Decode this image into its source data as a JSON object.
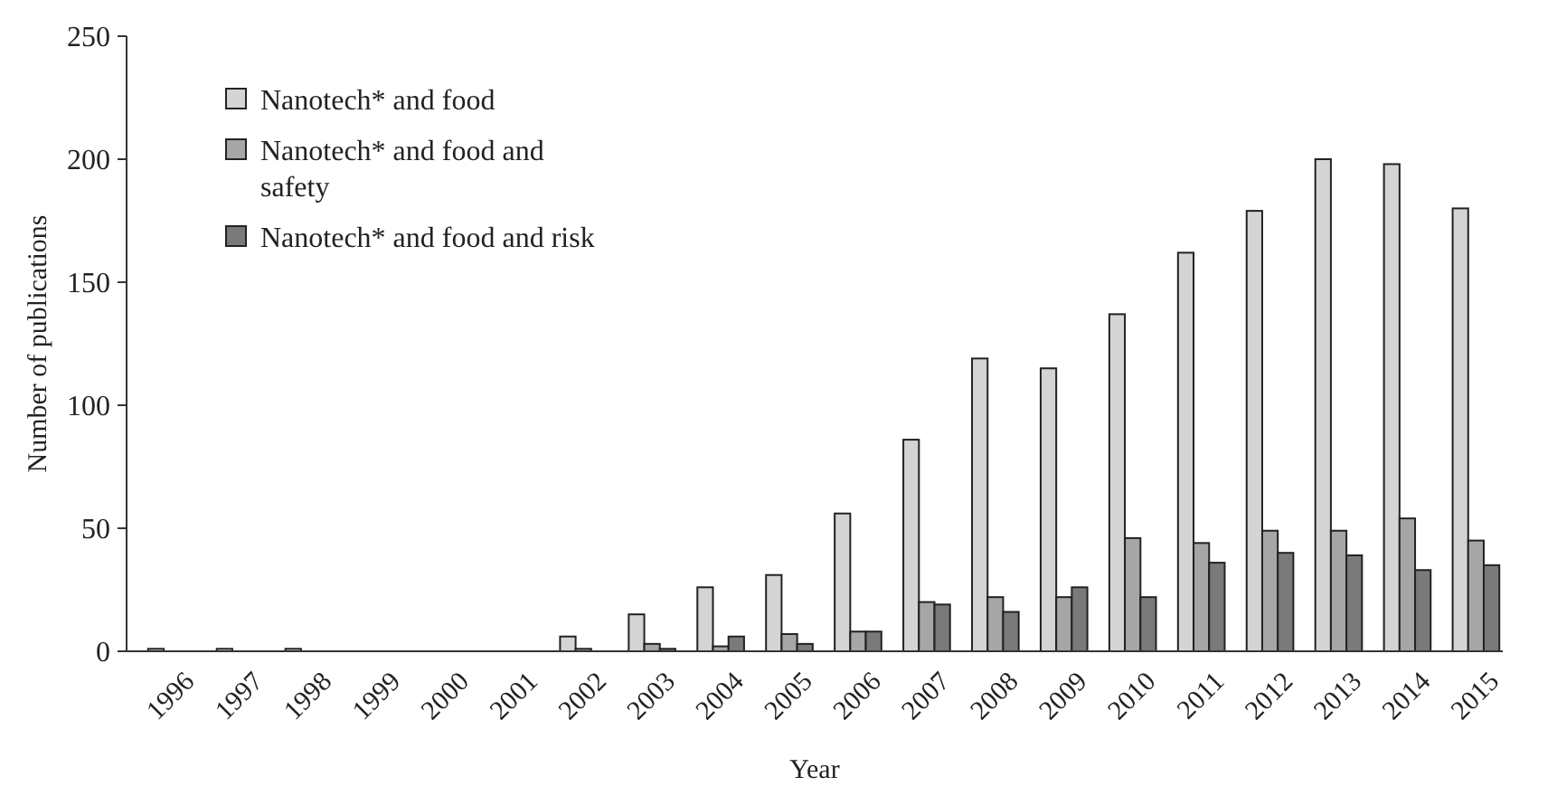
{
  "chart_data": {
    "type": "bar",
    "xlabel": "Year",
    "ylabel": "Number of publications",
    "categories": [
      "1996",
      "1997",
      "1998",
      "1999",
      "2000",
      "2001",
      "2002",
      "2003",
      "2004",
      "2005",
      "2006",
      "2007",
      "2008",
      "2009",
      "2010",
      "2011",
      "2012",
      "2013",
      "2014",
      "2015"
    ],
    "series": [
      {
        "name": "Nanotech* and food",
        "color": "#d4d4d4",
        "values": [
          1,
          1,
          1,
          0,
          0,
          0,
          6,
          15,
          26,
          31,
          56,
          86,
          119,
          115,
          137,
          162,
          179,
          200,
          198,
          180
        ]
      },
      {
        "name": "Nanotech* and food and safety",
        "color": "#a6a6a6",
        "values": [
          0,
          0,
          0,
          0,
          0,
          0,
          1,
          3,
          2,
          7,
          8,
          20,
          22,
          22,
          46,
          44,
          49,
          49,
          54,
          45
        ]
      },
      {
        "name": "Nanotech* and food and risk",
        "color": "#7a7a7a",
        "values": [
          0,
          0,
          0,
          0,
          0,
          0,
          0,
          1,
          6,
          3,
          8,
          19,
          16,
          26,
          22,
          36,
          40,
          39,
          33,
          35
        ]
      }
    ],
    "ylim": [
      0,
      250
    ],
    "yticks": [
      0,
      50,
      100,
      150,
      200,
      250
    ],
    "grid": false,
    "legend": "top left"
  }
}
